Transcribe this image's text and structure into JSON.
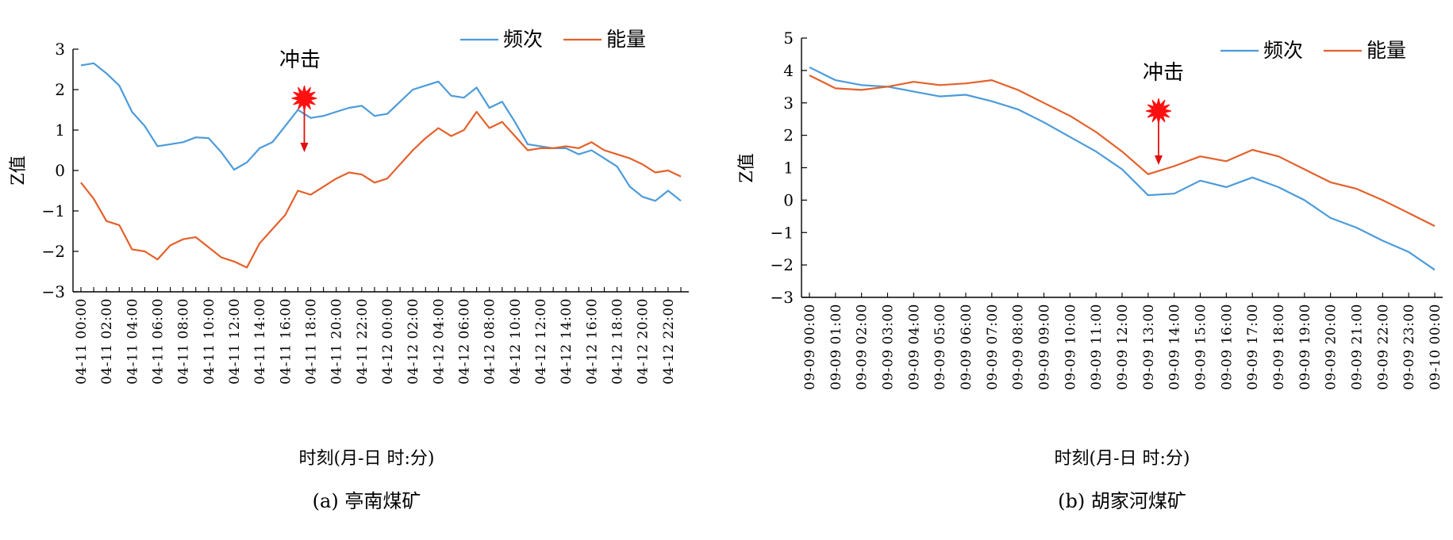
{
  "chart_data": [
    {
      "type": "line",
      "caption": "(a) 亭南煤矿",
      "xlabel": "时刻(月-日 时:分)",
      "ylabel": "Z值",
      "ylim": [
        -3,
        3
      ],
      "yticks": [
        -3,
        -2,
        -1,
        0,
        1,
        2,
        3
      ],
      "x_count": 48,
      "x_labels": [
        "04-11 00:00",
        "04-11 02:00",
        "04-11 04:00",
        "04-11 06:00",
        "04-11 08:00",
        "04-11 10:00",
        "04-11 12:00",
        "04-11 14:00",
        "04-11 16:00",
        "04-11 18:00",
        "04-11 20:00",
        "04-11 22:00",
        "04-12 00:00",
        "04-12 02:00",
        "04-12 04:00",
        "04-12 06:00",
        "04-12 08:00",
        "04-12 10:00",
        "04-12 12:00",
        "04-12 14:00",
        "04-12 16:00",
        "04-12 18:00",
        "04-12 20:00",
        "04-12 22:00"
      ],
      "legend_position": "top-right",
      "series": [
        {
          "name": "频次",
          "color": "#4C9BDA",
          "values": [
            2.6,
            2.65,
            2.4,
            2.1,
            1.45,
            1.1,
            0.6,
            0.65,
            0.7,
            0.82,
            0.8,
            0.45,
            0.02,
            0.2,
            0.55,
            0.7,
            1.1,
            1.5,
            1.3,
            1.35,
            1.45,
            1.55,
            1.6,
            1.35,
            1.4,
            1.7,
            2.0,
            2.1,
            2.2,
            1.85,
            1.8,
            2.05,
            1.55,
            1.7,
            1.2,
            0.65,
            0.6,
            0.55,
            0.55,
            0.4,
            0.5,
            0.3,
            0.1,
            -0.4,
            -0.65,
            -0.75,
            -0.5,
            -0.75
          ]
        },
        {
          "name": "能量",
          "color": "#E4612B",
          "values": [
            -0.3,
            -0.7,
            -1.25,
            -1.35,
            -1.95,
            -2.0,
            -2.2,
            -1.85,
            -1.7,
            -1.65,
            -1.9,
            -2.15,
            -2.25,
            -2.4,
            -1.8,
            -1.45,
            -1.1,
            -0.5,
            -0.6,
            -0.4,
            -0.2,
            -0.05,
            -0.1,
            -0.3,
            -0.2,
            0.15,
            0.5,
            0.8,
            1.05,
            0.85,
            1.0,
            1.45,
            1.05,
            1.2,
            0.85,
            0.5,
            0.55,
            0.55,
            0.6,
            0.55,
            0.7,
            0.5,
            0.4,
            0.3,
            0.15,
            -0.05,
            0.0,
            -0.15
          ]
        }
      ],
      "annotation": {
        "label": "冲击",
        "x_index": 17.5
      }
    },
    {
      "type": "line",
      "caption": "(b) 胡家河煤矿",
      "xlabel": "时刻(月-日 时:分)",
      "ylabel": "Z值",
      "ylim": [
        -3,
        5
      ],
      "yticks": [
        -3,
        -2,
        -1,
        0,
        1,
        2,
        3,
        4,
        5
      ],
      "x_count": 25,
      "x_labels": [
        "09-09 00:00",
        "09-09 01:00",
        "09-09 02:00",
        "09-09 03:00",
        "09-09 04:00",
        "09-09 05:00",
        "09-09 06:00",
        "09-09 07:00",
        "09-09 08:00",
        "09-09 09:00",
        "09-09 10:00",
        "09-09 11:00",
        "09-09 12:00",
        "09-09 13:00",
        "09-09 14:00",
        "09-09 15:00",
        "09-09 16:00",
        "09-09 17:00",
        "09-09 18:00",
        "09-09 19:00",
        "09-09 20:00",
        "09-09 21:00",
        "09-09 22:00",
        "09-09 23:00",
        "09-10 00:00"
      ],
      "legend_position": "top-right",
      "series": [
        {
          "name": "频次",
          "color": "#4C9BDA",
          "values": [
            4.1,
            3.7,
            3.55,
            3.5,
            3.35,
            3.2,
            3.25,
            3.05,
            2.8,
            2.4,
            1.95,
            1.5,
            0.95,
            0.15,
            0.2,
            0.6,
            0.4,
            0.7,
            0.4,
            0.0,
            -0.55,
            -0.85,
            -1.25,
            -1.6,
            -2.15
          ]
        },
        {
          "name": "能量",
          "color": "#E4612B",
          "values": [
            3.85,
            3.45,
            3.4,
            3.5,
            3.65,
            3.55,
            3.6,
            3.7,
            3.4,
            3.0,
            2.6,
            2.1,
            1.5,
            0.8,
            1.05,
            1.35,
            1.2,
            1.55,
            1.35,
            0.95,
            0.55,
            0.35,
            0.0,
            -0.4,
            -0.8
          ]
        }
      ],
      "annotation": {
        "label": "冲击",
        "x_index": 13.4
      }
    }
  ]
}
